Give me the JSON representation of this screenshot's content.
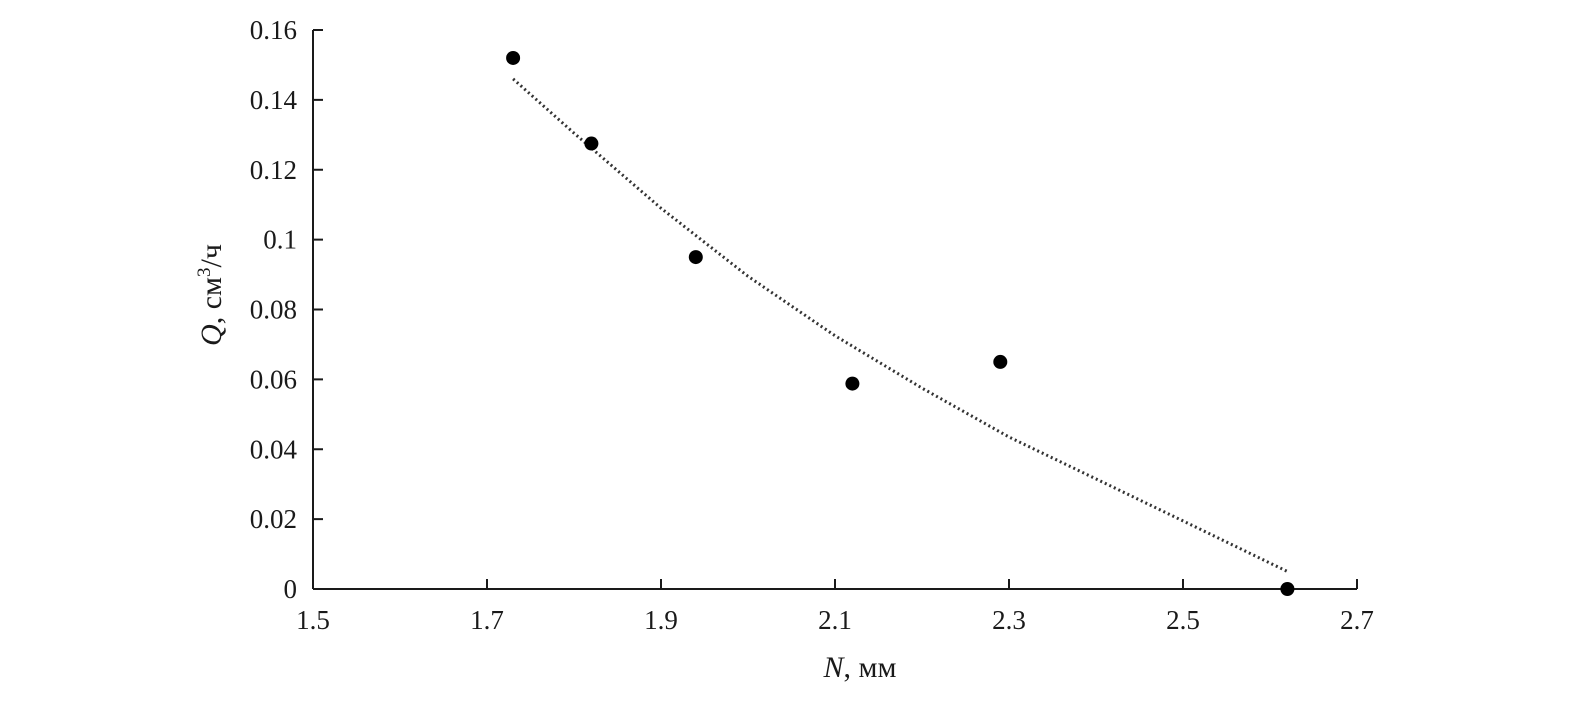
{
  "chart_data": {
    "type": "scatter",
    "xlabel": {
      "symbol": "N",
      "unit": ", мм"
    },
    "ylabel": {
      "symbol": "Q",
      "unit": ", см",
      "sup": "3",
      "tail": "/ч"
    },
    "xlim": [
      1.5,
      2.7
    ],
    "ylim": [
      0,
      0.16
    ],
    "xticks": [
      "1.5",
      "1.7",
      "1.9",
      "2.1",
      "2.3",
      "2.5",
      "2.7"
    ],
    "yticks": [
      "0",
      "0.02",
      "0.04",
      "0.06",
      "0.08",
      "0.1",
      "0.12",
      "0.14",
      "0.16"
    ],
    "series": [
      {
        "points": [
          {
            "x": 1.73,
            "y": 0.152
          },
          {
            "x": 1.82,
            "y": 0.1275
          },
          {
            "x": 1.94,
            "y": 0.095
          },
          {
            "x": 2.12,
            "y": 0.0588
          },
          {
            "x": 2.29,
            "y": 0.065
          },
          {
            "x": 2.62,
            "y": 0.0
          }
        ]
      }
    ],
    "trendline": {
      "style": "dotted",
      "x": [
        1.73,
        1.8,
        1.9,
        2.0,
        2.1,
        2.2,
        2.3,
        2.4,
        2.5,
        2.62
      ],
      "y": [
        0.146,
        0.1305,
        0.109,
        0.0895,
        0.0725,
        0.0575,
        0.0435,
        0.0315,
        0.0195,
        0.005
      ]
    },
    "grid": false,
    "legend": "none",
    "colors": {
      "axis": "#1a1a1a",
      "points": "#000000",
      "trend": "#333333"
    }
  }
}
